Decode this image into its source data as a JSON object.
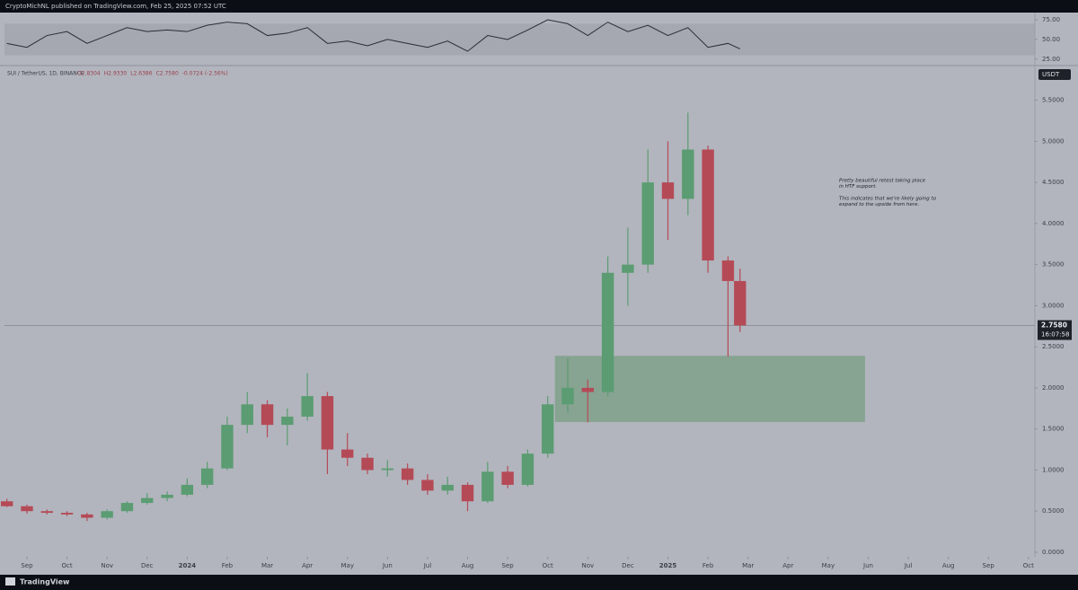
{
  "header": {
    "publisher": "CryptoMichNL published on TradingView.com, Feb 25, 2025 07:52 UTC",
    "brand": "TradingView"
  },
  "chart_data": [
    {
      "type": "candlestick",
      "title": "SUI / TetherUS, 1D, BINANCE",
      "ohlc_header": [
        "O2.8304",
        "H2.9330",
        "L2.6386",
        "C2.7580",
        "-0.0724 (-2.56%)"
      ],
      "currency": "USDT",
      "x": [
        -0.5,
        0,
        0.5,
        1,
        1.5,
        2,
        2.5,
        3,
        3.5,
        4,
        4.5,
        5,
        5.5,
        6,
        6.5,
        7,
        7.5,
        8,
        8.5,
        9,
        9.5,
        10,
        10.5,
        11,
        11.5,
        12,
        12.5,
        13,
        13.5,
        14,
        14.5,
        15,
        15.5,
        16,
        16.5,
        17,
        17.5,
        17.8
      ],
      "open": [
        0.62,
        0.56,
        0.5,
        0.48,
        0.46,
        0.42,
        0.5,
        0.6,
        0.66,
        0.7,
        0.82,
        1.02,
        1.55,
        1.8,
        1.55,
        1.65,
        1.9,
        1.25,
        1.15,
        1.0,
        1.02,
        0.88,
        0.75,
        0.82,
        0.62,
        0.98,
        0.82,
        1.2,
        1.8,
        2.0,
        1.95,
        3.4,
        3.5,
        4.5,
        4.3,
        4.9,
        3.55,
        3.3
      ],
      "high": [
        0.65,
        0.58,
        0.52,
        0.5,
        0.48,
        0.52,
        0.62,
        0.72,
        0.74,
        0.9,
        1.1,
        1.65,
        1.95,
        1.85,
        1.75,
        2.18,
        1.95,
        1.45,
        1.2,
        1.12,
        1.08,
        0.95,
        0.92,
        0.85,
        1.1,
        1.05,
        1.25,
        1.9,
        2.36,
        2.1,
        3.6,
        3.95,
        4.9,
        5.0,
        5.35,
        4.95,
        3.6,
        3.45
      ],
      "low": [
        0.55,
        0.47,
        0.46,
        0.44,
        0.38,
        0.4,
        0.48,
        0.58,
        0.62,
        0.68,
        0.78,
        1.0,
        1.45,
        1.4,
        1.3,
        1.6,
        0.95,
        1.05,
        0.95,
        0.92,
        0.82,
        0.7,
        0.7,
        0.5,
        0.6,
        0.78,
        0.8,
        1.15,
        1.7,
        1.58,
        1.9,
        3.0,
        3.4,
        3.8,
        4.1,
        3.4,
        2.38,
        2.68
      ],
      "close": [
        0.56,
        0.5,
        0.48,
        0.46,
        0.42,
        0.5,
        0.6,
        0.66,
        0.7,
        0.82,
        1.02,
        1.55,
        1.8,
        1.55,
        1.65,
        1.9,
        1.25,
        1.15,
        1.0,
        1.02,
        0.88,
        0.75,
        0.82,
        0.62,
        0.98,
        0.82,
        1.2,
        1.8,
        2.0,
        1.95,
        3.4,
        3.5,
        4.5,
        4.3,
        4.9,
        3.55,
        3.3,
        2.76
      ],
      "up_color": "#5b9c72",
      "down_color": "#b54a57",
      "xlim": [
        -0.56,
        25.16
      ],
      "xticks": [
        {
          "value": 0,
          "label": "Sep"
        },
        {
          "value": 1,
          "label": "Oct"
        },
        {
          "value": 2,
          "label": "Nov"
        },
        {
          "value": 3,
          "label": "Dec"
        },
        {
          "value": 4,
          "label": "2024"
        },
        {
          "value": 5,
          "label": "Feb"
        },
        {
          "value": 6,
          "label": "Mar"
        },
        {
          "value": 7,
          "label": "Apr"
        },
        {
          "value": 8,
          "label": "May"
        },
        {
          "value": 9,
          "label": "Jun"
        },
        {
          "value": 10,
          "label": "Jul"
        },
        {
          "value": 11,
          "label": "Aug"
        },
        {
          "value": 12,
          "label": "Sep"
        },
        {
          "value": 13,
          "label": "Oct"
        },
        {
          "value": 14,
          "label": "Nov"
        },
        {
          "value": 15,
          "label": "Dec"
        },
        {
          "value": 16,
          "label": "2025"
        },
        {
          "value": 17,
          "label": "Feb"
        },
        {
          "value": 18,
          "label": "Mar"
        },
        {
          "value": 19,
          "label": "Apr"
        },
        {
          "value": 20,
          "label": "May"
        },
        {
          "value": 21,
          "label": "Jun"
        },
        {
          "value": 22,
          "label": "Jul"
        },
        {
          "value": 23,
          "label": "Aug"
        },
        {
          "value": 24,
          "label": "Sep"
        },
        {
          "value": 25,
          "label": "Oct"
        }
      ],
      "ylim": [
        -0.055,
        5.9
      ],
      "yticks": [
        {
          "value": 0,
          "label": "0.0000"
        },
        {
          "value": 0.5,
          "label": "0.5000"
        },
        {
          "value": 1,
          "label": "1.0000"
        },
        {
          "value": 1.5,
          "label": "1.5000"
        },
        {
          "value": 2,
          "label": "2.0000"
        },
        {
          "value": 2.5,
          "label": "2.5000"
        },
        {
          "value": 3,
          "label": "3.0000"
        },
        {
          "value": 3.5,
          "label": "3.5000"
        },
        {
          "value": 4,
          "label": "4.0000"
        },
        {
          "value": 4.5,
          "label": "4.5000"
        },
        {
          "value": 5,
          "label": "5.0000"
        },
        {
          "value": 5.5,
          "label": "5.5000"
        }
      ],
      "last_price": {
        "value": 2.758,
        "label": "2.7580"
      },
      "countdown": "16:07:58",
      "zone": {
        "x": [
          13.18,
          20.92
        ],
        "y": [
          1.585,
          2.39
        ],
        "color": "#7fa08a"
      },
      "annotation": [
        "Pretty beautiful retest taking place",
        "in HTF support.",
        "This indicates that we're likely going to",
        "expand to the upside from here."
      ]
    },
    {
      "type": "line",
      "title_hidden": false,
      "values": [
        45,
        40,
        55,
        60,
        45,
        55,
        65,
        60,
        62,
        60,
        68,
        72,
        70,
        55,
        58,
        65,
        45,
        48,
        42,
        50,
        45,
        40,
        48,
        35,
        55,
        50,
        62,
        75,
        70,
        55,
        72,
        60,
        68,
        55,
        65,
        40,
        45,
        38
      ],
      "color": "#2b2d33",
      "band": [
        30,
        70
      ],
      "ylim": [
        18,
        83
      ],
      "yticks": [
        {
          "value": 75,
          "label": "75.00"
        },
        {
          "value": 50,
          "label": "50.00"
        },
        {
          "value": 25,
          "label": "25.00"
        }
      ]
    }
  ]
}
